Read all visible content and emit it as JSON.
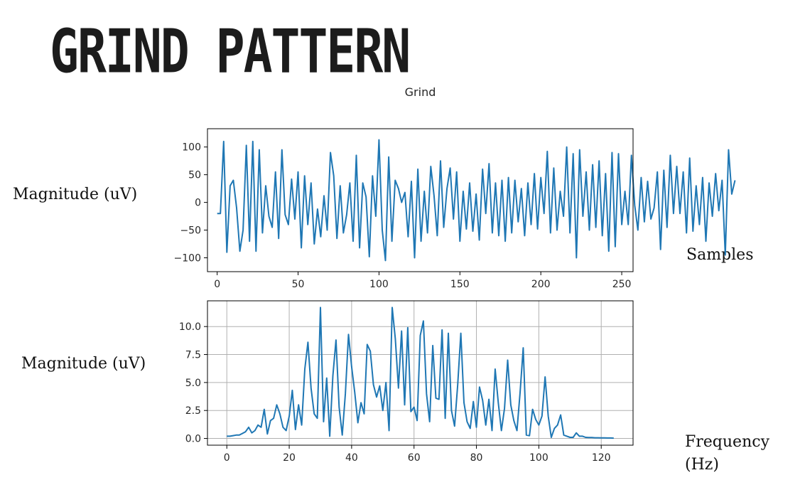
{
  "slide": {
    "title": "GRIND PATTERN",
    "label_top_y": "Magnitude (uV)",
    "label_top_x": "Samples",
    "label_bottom_y": "Magnitude (uV)",
    "label_bottom_x": "Frequency (Hz)"
  },
  "colors": {
    "line": "#1f77b4",
    "grid": "#b0b0b0",
    "axes": "#000000"
  },
  "chart_data": [
    {
      "type": "line",
      "title": "Grind",
      "xlabel": "",
      "ylabel": "",
      "xlim": [
        -6,
        257
      ],
      "ylim": [
        -125,
        133
      ],
      "xticks": [
        0,
        50,
        100,
        150,
        200,
        250
      ],
      "yticks": [
        -100,
        -50,
        0,
        50,
        100
      ],
      "grid": false,
      "x_start": 0,
      "x_step": 2,
      "values": [
        -20,
        -20,
        110,
        -90,
        30,
        40,
        -10,
        -88,
        -50,
        103,
        -70,
        110,
        -88,
        95,
        -55,
        30,
        -25,
        -45,
        55,
        -65,
        95,
        -22,
        -40,
        42,
        -30,
        55,
        -82,
        48,
        -40,
        35,
        -75,
        -12,
        -62,
        12,
        -50,
        90,
        48,
        -65,
        30,
        -55,
        -22,
        35,
        -70,
        85,
        -82,
        35,
        10,
        -98,
        48,
        -25,
        113,
        -50,
        -105,
        82,
        -70,
        40,
        25,
        0,
        18,
        -62,
        38,
        -100,
        60,
        -70,
        20,
        -55,
        65,
        12,
        -60,
        75,
        -45,
        25,
        62,
        -30,
        55,
        -70,
        20,
        -48,
        35,
        -52,
        15,
        -68,
        60,
        -20,
        70,
        -55,
        35,
        -60,
        40,
        -70,
        45,
        -55,
        40,
        -35,
        25,
        -60,
        35,
        -40,
        52,
        -48,
        45,
        -20,
        92,
        -55,
        62,
        -50,
        20,
        -25,
        100,
        -55,
        88,
        -100,
        95,
        -25,
        55,
        -50,
        68,
        -45,
        75,
        -60,
        52,
        -88,
        90,
        -80,
        88,
        -40,
        20,
        -40,
        85,
        -5,
        -50,
        45,
        -35,
        38,
        -30,
        -10,
        55,
        -85,
        58,
        -45,
        85,
        -20,
        65,
        -20,
        55,
        -55,
        80,
        -52,
        30,
        -40,
        45,
        -70,
        35,
        -25,
        52,
        -15,
        40,
        -95,
        95,
        15,
        40
      ]
    },
    {
      "type": "line",
      "title": "",
      "xlabel": "",
      "ylabel": "",
      "xlim": [
        -6.2,
        130.2
      ],
      "ylim": [
        -0.6,
        12.3
      ],
      "xticks": [
        0,
        20,
        40,
        60,
        80,
        100,
        120
      ],
      "yticks": [
        0.0,
        2.5,
        5.0,
        7.5,
        10.0
      ],
      "ytick_labels": [
        "0.0",
        "2.5",
        "5.0",
        "7.5",
        "10.0"
      ],
      "grid": true,
      "x_start": 0,
      "x_step": 1,
      "values": [
        0.2,
        0.2,
        0.25,
        0.3,
        0.3,
        0.45,
        0.6,
        1.0,
        0.5,
        0.7,
        1.2,
        1.0,
        2.6,
        0.4,
        1.6,
        1.8,
        3.0,
        2.2,
        1.0,
        0.7,
        2.0,
        4.3,
        0.8,
        3.0,
        1.2,
        6.2,
        8.6,
        4.5,
        2.2,
        1.8,
        11.7,
        1.5,
        5.4,
        0.2,
        5.6,
        8.8,
        2.8,
        0.3,
        4.0,
        9.3,
        6.4,
        4.1,
        1.4,
        3.2,
        2.2,
        8.4,
        7.8,
        4.8,
        3.7,
        4.7,
        2.5,
        5.0,
        0.7,
        11.7,
        8.9,
        4.5,
        9.6,
        3.0,
        9.9,
        2.4,
        2.8,
        1.6,
        9.2,
        10.5,
        4.0,
        1.5,
        8.3,
        3.6,
        3.5,
        9.7,
        1.8,
        9.4,
        2.5,
        1.1,
        4.8,
        9.4,
        3.2,
        1.5,
        0.9,
        3.3,
        1.0,
        4.6,
        3.4,
        1.2,
        3.5,
        0.7,
        6.2,
        3.2,
        0.7,
        2.7,
        7.0,
        3.0,
        1.6,
        0.7,
        4.1,
        8.1,
        0.3,
        0.25,
        2.6,
        1.7,
        1.2,
        2.0,
        5.5,
        2.0,
        0.1,
        0.9,
        1.2,
        2.1,
        0.3,
        0.2,
        0.1,
        0.1,
        0.5,
        0.2,
        0.2,
        0.1,
        0.08,
        0.08,
        0.06,
        0.06,
        0.05,
        0.05,
        0.04,
        0.04,
        0.03
      ]
    }
  ]
}
